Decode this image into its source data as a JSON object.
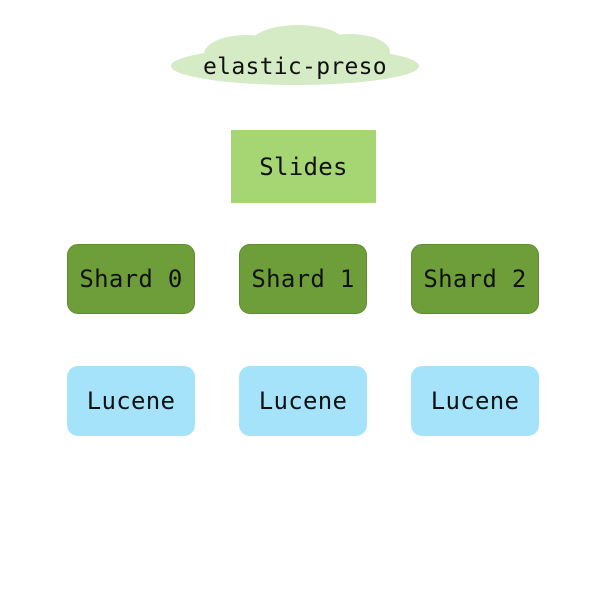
{
  "cluster": {
    "label": "elastic-preso",
    "color": "#d4ebc5"
  },
  "index": {
    "label": "Slides",
    "color": "#a6d673"
  },
  "shards": [
    {
      "label": "Shard 0"
    },
    {
      "label": "Shard 1"
    },
    {
      "label": "Shard 2"
    }
  ],
  "shard_color": "#6e9e3a",
  "shard_border_color": "#5f8c2f",
  "lucene_nodes": [
    {
      "label": "Lucene"
    },
    {
      "label": "Lucene"
    },
    {
      "label": "Lucene"
    }
  ],
  "lucene_color": "#a5e3fb"
}
